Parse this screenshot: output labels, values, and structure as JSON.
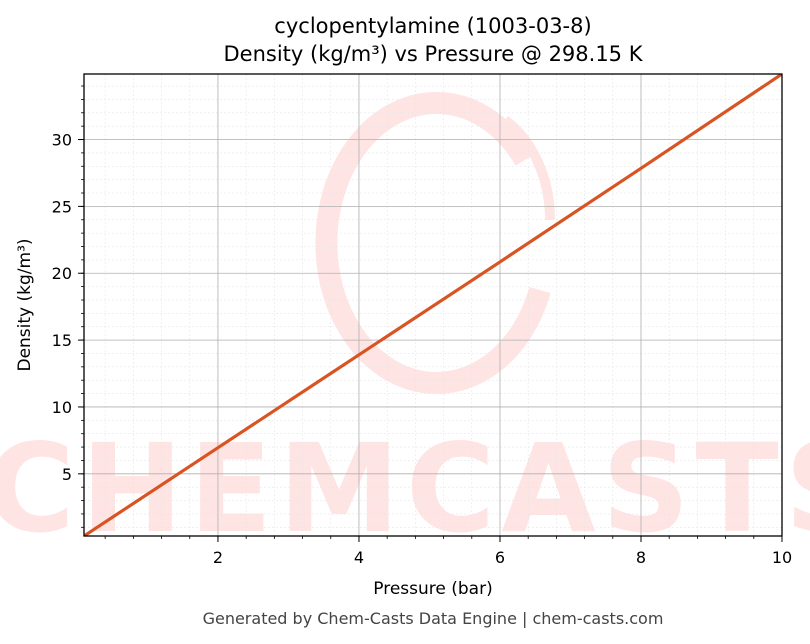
{
  "chart_data": {
    "type": "line",
    "title": "cyclopentylamine (1003-03-8)",
    "subtitle": "Density (kg/m³) vs Pressure @ 298.15 K",
    "xlabel": "Pressure (bar)",
    "ylabel": "Density (kg/m³)",
    "xlim": [
      0.1,
      10
    ],
    "ylim": [
      0.35,
      34.9
    ],
    "x_ticks": [
      2,
      4,
      6,
      8,
      10
    ],
    "y_ticks": [
      5,
      10,
      15,
      20,
      25,
      30
    ],
    "grid": true,
    "series": [
      {
        "x": [
          0.1,
          2,
          4,
          6,
          8,
          10
        ],
        "y": [
          0.35,
          6.95,
          13.9,
          20.85,
          27.85,
          34.9
        ],
        "color": "#d95423"
      }
    ]
  },
  "watermark": {
    "text": "CHEMCASTS",
    "color": "#ffe4e4"
  },
  "footer": "Generated by Chem-Casts Data Engine | chem-casts.com"
}
